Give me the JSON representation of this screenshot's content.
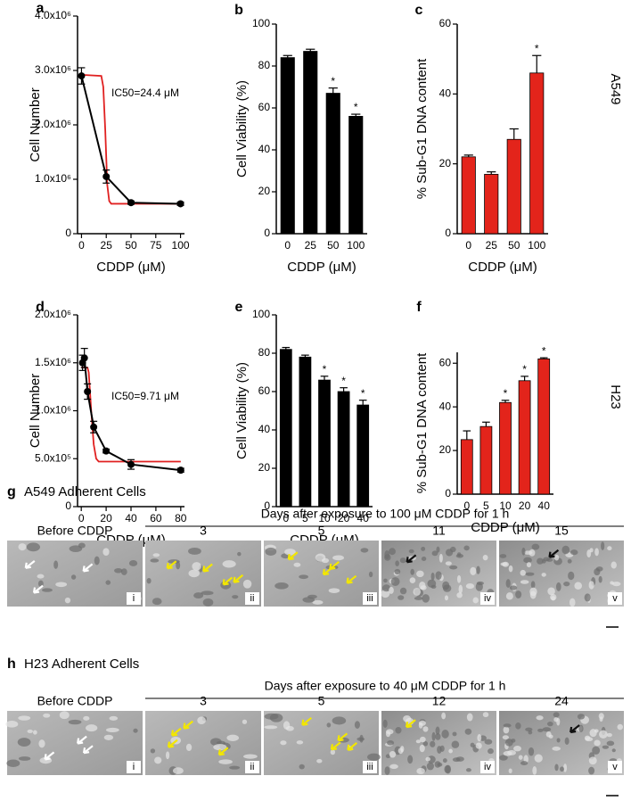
{
  "chart_data": [
    {
      "type": "line",
      "panel": "a",
      "ylabel": "Cell Number",
      "xlabel": "CDDP (μM)",
      "annotation": "IC50=24.4 μM",
      "x": [
        0,
        25,
        50,
        100
      ],
      "values": [
        2900000,
        1050000,
        570000,
        550000
      ],
      "errors": [
        150000,
        120000,
        30000,
        30000
      ],
      "color": "#000000",
      "fit": {
        "x": [
          0,
          20,
          22,
          24,
          26,
          28,
          30,
          100
        ],
        "values": [
          2920000,
          2900000,
          2700000,
          1900000,
          900000,
          600000,
          550000,
          550000
        ],
        "color": "#e02020"
      },
      "xlim": [
        -4,
        104
      ],
      "xticks": [
        0,
        25,
        50,
        75,
        100
      ],
      "ylim": [
        0,
        4000000
      ],
      "yticks": [
        0,
        {
          "value": 1000000,
          "label": "1.0x10⁶"
        },
        {
          "value": 2000000,
          "label": "2.0x10⁶"
        },
        {
          "value": 3000000,
          "label": "3.0x10⁶"
        },
        {
          "value": 4000000,
          "label": "4.0x10⁶"
        }
      ]
    },
    {
      "type": "bar",
      "panel": "b",
      "ylabel": "Cell Viability (%)",
      "xlabel": "CDDP (μM)",
      "categories": [
        "0",
        "25",
        "50",
        "100"
      ],
      "values": [
        84,
        87,
        67,
        56
      ],
      "errors": [
        1,
        1,
        2.5,
        1
      ],
      "significance": [
        null,
        null,
        "*",
        "*"
      ],
      "color": "#000000",
      "ylim": [
        0,
        100
      ],
      "yticks": [
        0,
        20,
        40,
        60,
        80,
        100
      ]
    },
    {
      "type": "bar",
      "panel": "c",
      "ylabel": "% Sub-G1 DNA content",
      "xlabel": "CDDP (μM)",
      "side_label": "A549",
      "categories": [
        "0",
        "25",
        "50",
        "100"
      ],
      "values": [
        22,
        17,
        27,
        46
      ],
      "errors": [
        0.5,
        0.7,
        3,
        5
      ],
      "significance": [
        null,
        null,
        null,
        "*"
      ],
      "color": "#e3241b",
      "ylim": [
        0,
        60
      ],
      "yticks": [
        0,
        20,
        40,
        60
      ]
    },
    {
      "type": "line",
      "panel": "d",
      "ylabel": "Cell Number",
      "xlabel": "CDDP (μM)",
      "annotation": "IC50=9.71 μM",
      "x": [
        1,
        2.5,
        5,
        10,
        20,
        40,
        80
      ],
      "values": [
        1500000,
        1550000,
        1200000,
        830000,
        580000,
        440000,
        380000
      ],
      "errors": [
        80000,
        100000,
        80000,
        60000,
        20000,
        50000,
        20000
      ],
      "color": "#000000",
      "fit": {
        "x": [
          0,
          5,
          6,
          8,
          10,
          12,
          14,
          80
        ],
        "values": [
          1450000,
          1450000,
          1400000,
          1000000,
          650000,
          500000,
          470000,
          470000
        ],
        "color": "#e02020"
      },
      "xlim": [
        -3,
        83
      ],
      "xticks": [
        0,
        20,
        40,
        60,
        80
      ],
      "ylim": [
        0,
        2000000
      ],
      "yticks": [
        0,
        {
          "value": 500000,
          "label": "5.0x10⁵"
        },
        {
          "value": 1000000,
          "label": "1.0x10⁶"
        },
        {
          "value": 1500000,
          "label": "1.5x10⁶"
        },
        {
          "value": 2000000,
          "label": "2.0x10⁶"
        }
      ]
    },
    {
      "type": "bar",
      "panel": "e",
      "ylabel": "Cell Viability (%)",
      "xlabel": "CDDP (μM)",
      "categories": [
        "0",
        "5",
        "10",
        "20",
        "40"
      ],
      "values": [
        82,
        78,
        66,
        60,
        53
      ],
      "errors": [
        1,
        1,
        2,
        2,
        2.5
      ],
      "significance": [
        null,
        null,
        "*",
        "*",
        "*"
      ],
      "color": "#000000",
      "ylim": [
        0,
        100
      ],
      "yticks": [
        0,
        20,
        40,
        60,
        80,
        100
      ]
    },
    {
      "type": "bar",
      "panel": "f",
      "ylabel": "% Sub-G1 DNA content",
      "xlabel": "CDDP (μM)",
      "side_label": "H23",
      "categories": [
        "0",
        "5",
        "10",
        "20",
        "40"
      ],
      "values": [
        25,
        31,
        42,
        52,
        62
      ],
      "errors": [
        4,
        2,
        1,
        2,
        0.5
      ],
      "significance": [
        null,
        null,
        "*",
        "*",
        "*"
      ],
      "color": "#e3241b",
      "ylim": [
        0,
        65
      ],
      "yticks": [
        0,
        20,
        40,
        60
      ]
    }
  ],
  "micrographs": [
    {
      "panel": "g",
      "title": "A549 Adherent Cells",
      "header": "Days after exposure to 100 μM CDDP for 1 h",
      "columns": [
        "Before CDDP",
        "3",
        "5",
        "11",
        "15"
      ],
      "numerals": [
        "i",
        "ii",
        "iii",
        "iv",
        "v"
      ]
    },
    {
      "panel": "h",
      "title": "H23 Adherent Cells",
      "header": "Days after exposure to 40 μM CDDP for 1 h",
      "columns": [
        "Before CDDP",
        "3",
        "5",
        "12",
        "24"
      ],
      "numerals": [
        "i",
        "ii",
        "iii",
        "iv",
        "v"
      ]
    }
  ]
}
